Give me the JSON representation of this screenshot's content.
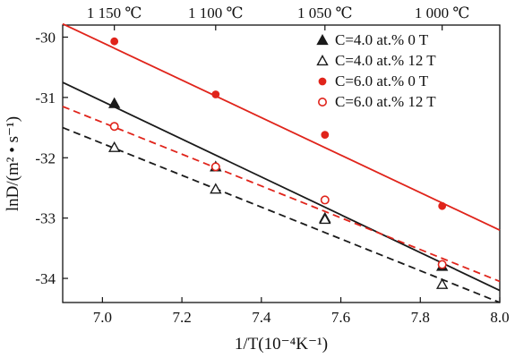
{
  "chart_data": {
    "type": "scatter",
    "xlabel": "1/T(10⁻⁴K⁻¹)",
    "ylabel": "lnD/(m² • s⁻¹)",
    "xlim": [
      6.9,
      8.0
    ],
    "ylim": [
      -34.4,
      -29.8
    ],
    "x_ticks": [
      "7.0",
      "7.2",
      "7.4",
      "7.6",
      "7.8",
      "8.0"
    ],
    "y_ticks": [
      "-30",
      "-31",
      "-32",
      "-33",
      "-34"
    ],
    "top_axis": {
      "label_positions_x": [
        7.03,
        7.285,
        7.56,
        7.855
      ],
      "labels": [
        "1 150 ℃",
        "1 100 ℃",
        "1 050 ℃",
        "1 000 ℃"
      ]
    },
    "legend_position": "top-right",
    "series": [
      {
        "name": "C=4.0 at.% 0 T",
        "color": "#1a1a1a",
        "marker": "filled-triangle",
        "line": "solid",
        "x": [
          7.03,
          7.285,
          7.56,
          7.855
        ],
        "y": [
          -31.1,
          -32.15,
          -33.0,
          -33.8
        ],
        "fit": [
          [
            6.9,
            -30.75
          ],
          [
            8.0,
            -34.2
          ]
        ]
      },
      {
        "name": "C=4.0 at.% 12 T",
        "color": "#1a1a1a",
        "marker": "open-triangle",
        "line": "dashed",
        "x": [
          7.03,
          7.285,
          7.56,
          7.855
        ],
        "y": [
          -31.83,
          -32.52,
          -33.02,
          -34.1
        ],
        "fit": [
          [
            6.9,
            -31.5
          ],
          [
            8.0,
            -34.4
          ]
        ]
      },
      {
        "name": "C=6.0 at.% 0 T",
        "color": "#e0241b",
        "marker": "filled-circle",
        "line": "solid",
        "x": [
          7.03,
          7.285,
          7.56,
          7.855
        ],
        "y": [
          -30.07,
          -30.95,
          -31.62,
          -32.8
        ],
        "fit": [
          [
            6.9,
            -29.78
          ],
          [
            8.0,
            -33.2
          ]
        ]
      },
      {
        "name": "C=6.0 at.% 12 T",
        "color": "#e0241b",
        "marker": "open-circle",
        "line": "dashed",
        "x": [
          7.03,
          7.285,
          7.56,
          7.855
        ],
        "y": [
          -31.48,
          -32.15,
          -32.7,
          -33.77
        ],
        "fit": [
          [
            6.9,
            -31.15
          ],
          [
            8.0,
            -34.05
          ]
        ]
      }
    ]
  }
}
